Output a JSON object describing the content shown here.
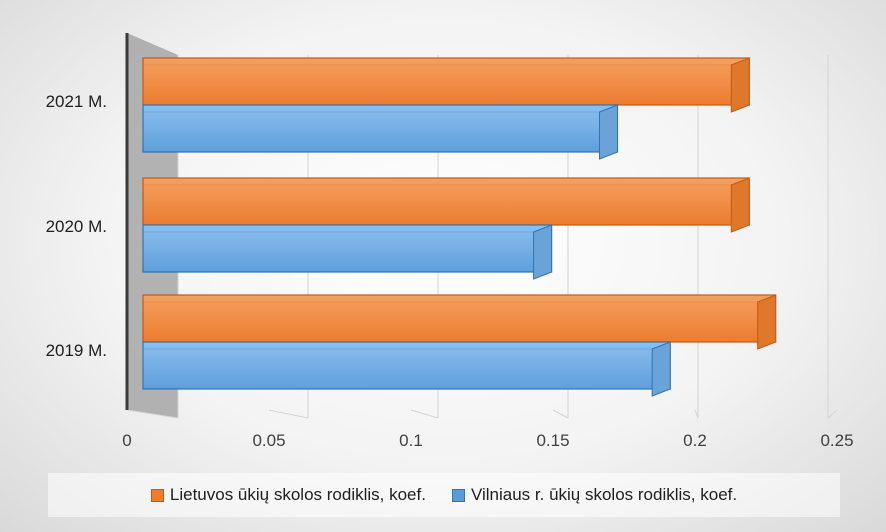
{
  "chart_data": {
    "type": "bar",
    "orientation": "horizontal",
    "categories": [
      "2019 M.",
      "2020 M.",
      "2021 M."
    ],
    "series": [
      {
        "name": "Lietuvos ūkių skolos rodiklis, koef.",
        "values": [
          0.24,
          0.23,
          0.23
        ],
        "color": "#ED7D31"
      },
      {
        "name": "Vilniaus r. ūkių skolos rodiklis, koef.",
        "values": [
          0.2,
          0.155,
          0.18
        ],
        "color": "#5B9BD5"
      }
    ],
    "xlim": [
      0,
      0.25
    ],
    "xticks": [
      "0",
      "0.05",
      "0.1",
      "0.15",
      "0.2",
      "0.25"
    ],
    "xtick_values": [
      0,
      0.05,
      0.1,
      0.15,
      0.2,
      0.25
    ],
    "grid": true,
    "legend_position": "bottom",
    "style": "3d"
  }
}
